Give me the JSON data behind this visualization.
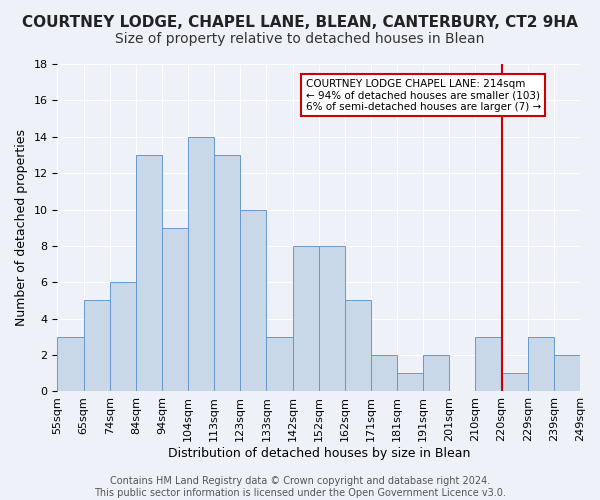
{
  "title": "COURTNEY LODGE, CHAPEL LANE, BLEAN, CANTERBURY, CT2 9HA",
  "subtitle": "Size of property relative to detached houses in Blean",
  "xlabel": "Distribution of detached houses by size in Blean",
  "ylabel": "Number of detached properties",
  "bin_labels": [
    "55sqm",
    "65sqm",
    "74sqm",
    "84sqm",
    "94sqm",
    "104sqm",
    "113sqm",
    "123sqm",
    "133sqm",
    "142sqm",
    "152sqm",
    "162sqm",
    "171sqm",
    "181sqm",
    "191sqm",
    "201sqm",
    "210sqm",
    "220sqm",
    "229sqm",
    "239sqm",
    "249sqm"
  ],
  "bar_heights": [
    3,
    5,
    6,
    13,
    9,
    14,
    13,
    10,
    3,
    8,
    8,
    5,
    2,
    1,
    2,
    0,
    3,
    1,
    3,
    2
  ],
  "bar_color": "#c8d8e8",
  "bar_edge_color": "#6699cc",
  "red_line_x": 16.5,
  "annotation_text": "COURTNEY LODGE CHAPEL LANE: 214sqm\n← 94% of detached houses are smaller (103)\n6% of semi-detached houses are larger (7) →",
  "annotation_box_color": "#ffffff",
  "annotation_border_color": "#cc0000",
  "red_line_color": "#cc0000",
  "ylim": [
    0,
    18
  ],
  "yticks": [
    0,
    2,
    4,
    6,
    8,
    10,
    12,
    14,
    16,
    18
  ],
  "footer": "Contains HM Land Registry data © Crown copyright and database right 2024.\nThis public sector information is licensed under the Open Government Licence v3.0.",
  "background_color": "#eef2f8",
  "title_fontsize": 11,
  "subtitle_fontsize": 10,
  "axis_label_fontsize": 9,
  "tick_fontsize": 8,
  "footer_fontsize": 7
}
